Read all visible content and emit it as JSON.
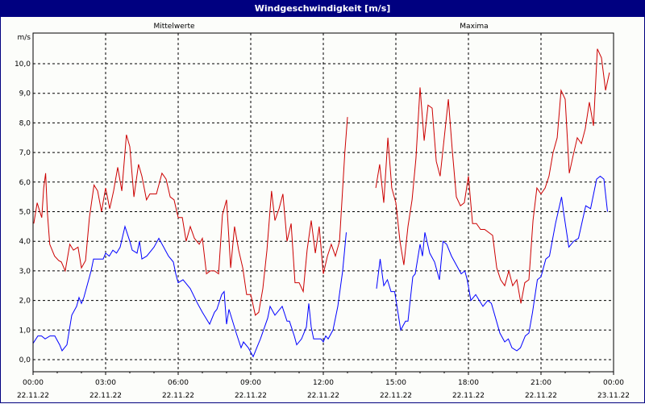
{
  "window": {
    "title": "Windgeschwindigkeit [m/s]"
  },
  "chart_data": {
    "type": "line",
    "title": "Windgeschwindigkeit [m/s]",
    "ylabel": "m/s",
    "xlabel": "",
    "ylim": [
      -0.5,
      11.0
    ],
    "xlim_hours": [
      0,
      24
    ],
    "grid": true,
    "legend_placement": "top",
    "yticks": [
      0,
      1,
      2,
      3,
      4,
      5,
      6,
      7,
      8,
      9,
      10
    ],
    "ytick_labels": [
      "0,0",
      "1,0",
      "2,0",
      "3,0",
      "4,0",
      "5,0",
      "6,0",
      "7,0",
      "8,0",
      "9,0",
      "10,0"
    ],
    "xticks": [
      {
        "time": "00:00",
        "date": "22.11.22"
      },
      {
        "time": "03:00",
        "date": "22.11.22"
      },
      {
        "time": "06:00",
        "date": "22.11.22"
      },
      {
        "time": "09:00",
        "date": "22.11.22"
      },
      {
        "time": "12:00",
        "date": "22.11.22"
      },
      {
        "time": "15:00",
        "date": "22.11.22"
      },
      {
        "time": "18:00",
        "date": "22.11.22"
      },
      {
        "time": "21:00",
        "date": "22.11.22"
      },
      {
        "time": "00:00",
        "date": "23.11.22"
      }
    ],
    "series": [
      {
        "name": "Mittelwerte",
        "color": "#0000ff",
        "segments": [
          [
            [
              0,
              0.55
            ],
            [
              0.2,
              0.8
            ],
            [
              0.35,
              0.8
            ],
            [
              0.5,
              0.7
            ],
            [
              0.7,
              0.8
            ],
            [
              0.9,
              0.8
            ],
            [
              1.1,
              0.5
            ],
            [
              1.2,
              0.3
            ],
            [
              1.4,
              0.5
            ],
            [
              1.6,
              1.5
            ],
            [
              1.8,
              1.8
            ],
            [
              1.9,
              2.1
            ],
            [
              2.0,
              1.9
            ],
            [
              2.1,
              2.1
            ],
            [
              2.4,
              3.0
            ],
            [
              2.5,
              3.4
            ],
            [
              2.9,
              3.4
            ],
            [
              3.0,
              3.6
            ],
            [
              3.15,
              3.5
            ],
            [
              3.3,
              3.7
            ],
            [
              3.45,
              3.6
            ],
            [
              3.6,
              3.8
            ],
            [
              3.8,
              4.5
            ],
            [
              4.0,
              4.0
            ],
            [
              4.1,
              3.7
            ],
            [
              4.3,
              3.6
            ],
            [
              4.4,
              4.0
            ],
            [
              4.5,
              3.4
            ],
            [
              4.7,
              3.5
            ],
            [
              4.9,
              3.7
            ],
            [
              5.0,
              3.8
            ],
            [
              5.2,
              4.1
            ],
            [
              5.4,
              3.8
            ],
            [
              5.6,
              3.5
            ],
            [
              5.8,
              3.3
            ],
            [
              5.9,
              2.9
            ],
            [
              6.0,
              2.6
            ],
            [
              6.2,
              2.7
            ],
            [
              6.3,
              2.6
            ],
            [
              6.5,
              2.4
            ],
            [
              6.8,
              1.9
            ],
            [
              7.0,
              1.6
            ],
            [
              7.3,
              1.2
            ],
            [
              7.5,
              1.6
            ],
            [
              7.6,
              1.7
            ],
            [
              7.8,
              2.2
            ],
            [
              7.9,
              2.3
            ],
            [
              8.0,
              1.2
            ],
            [
              8.1,
              1.7
            ],
            [
              8.4,
              0.9
            ],
            [
              8.6,
              0.4
            ],
            [
              8.7,
              0.6
            ],
            [
              8.9,
              0.4
            ],
            [
              9.1,
              0.1
            ],
            [
              9.3,
              0.5
            ],
            [
              9.4,
              0.7
            ],
            [
              9.7,
              1.4
            ],
            [
              9.8,
              1.8
            ],
            [
              10.0,
              1.5
            ],
            [
              10.2,
              1.7
            ],
            [
              10.3,
              1.8
            ],
            [
              10.5,
              1.3
            ],
            [
              10.6,
              1.3
            ],
            [
              10.8,
              0.8
            ],
            [
              10.9,
              0.5
            ],
            [
              11.1,
              0.7
            ],
            [
              11.3,
              1.1
            ],
            [
              11.4,
              1.9
            ],
            [
              11.5,
              1.1
            ],
            [
              11.6,
              0.7
            ],
            [
              11.9,
              0.7
            ],
            [
              12.0,
              0.6
            ],
            [
              12.1,
              0.8
            ],
            [
              12.2,
              0.7
            ],
            [
              12.4,
              1.0
            ],
            [
              12.6,
              1.8
            ],
            [
              12.8,
              3.0
            ],
            [
              12.95,
              4.3
            ]
          ],
          [
            [
              14.2,
              2.4
            ],
            [
              14.35,
              3.4
            ],
            [
              14.5,
              2.5
            ],
            [
              14.65,
              2.7
            ],
            [
              14.8,
              2.3
            ],
            [
              14.95,
              2.3
            ],
            [
              15.2,
              1.0
            ],
            [
              15.4,
              1.3
            ],
            [
              15.5,
              1.3
            ],
            [
              15.7,
              2.8
            ],
            [
              15.8,
              2.9
            ],
            [
              16.0,
              3.9
            ],
            [
              16.1,
              3.5
            ],
            [
              16.2,
              4.3
            ],
            [
              16.4,
              3.6
            ],
            [
              16.6,
              3.3
            ],
            [
              16.8,
              2.7
            ],
            [
              16.95,
              4.0
            ],
            [
              17.1,
              3.9
            ],
            [
              17.3,
              3.5
            ],
            [
              17.5,
              3.2
            ],
            [
              17.7,
              2.9
            ],
            [
              17.85,
              3.0
            ],
            [
              17.95,
              2.7
            ],
            [
              18.1,
              2.0
            ],
            [
              18.3,
              2.2
            ],
            [
              18.45,
              2.0
            ],
            [
              18.6,
              1.8
            ],
            [
              18.8,
              2.0
            ],
            [
              18.95,
              1.9
            ],
            [
              19.3,
              0.9
            ],
            [
              19.5,
              0.6
            ],
            [
              19.65,
              0.7
            ],
            [
              19.8,
              0.4
            ],
            [
              20.0,
              0.3
            ],
            [
              20.15,
              0.4
            ],
            [
              20.35,
              0.8
            ],
            [
              20.5,
              0.9
            ],
            [
              20.65,
              1.6
            ],
            [
              20.85,
              2.7
            ],
            [
              21.0,
              2.8
            ],
            [
              21.2,
              3.4
            ],
            [
              21.35,
              3.5
            ],
            [
              21.6,
              4.6
            ],
            [
              21.85,
              5.5
            ],
            [
              21.95,
              4.9
            ],
            [
              22.15,
              3.8
            ],
            [
              22.35,
              4.0
            ],
            [
              22.55,
              4.1
            ],
            [
              22.85,
              5.2
            ],
            [
              23.05,
              5.1
            ],
            [
              23.3,
              6.1
            ],
            [
              23.45,
              6.2
            ],
            [
              23.6,
              6.1
            ],
            [
              23.75,
              5.0
            ]
          ]
        ]
      },
      {
        "name": "Maxima",
        "color": "#cc0000",
        "segments": [
          [
            [
              0.03,
              4.6
            ],
            [
              0.17,
              5.3
            ],
            [
              0.28,
              5.0
            ],
            [
              0.36,
              4.8
            ],
            [
              0.44,
              5.8
            ],
            [
              0.52,
              6.3
            ],
            [
              0.59,
              5.0
            ],
            [
              0.69,
              3.9
            ],
            [
              0.89,
              3.5
            ],
            [
              1.06,
              3.35
            ],
            [
              1.17,
              3.3
            ],
            [
              1.33,
              3.0
            ],
            [
              1.52,
              3.9
            ],
            [
              1.67,
              3.7
            ],
            [
              1.86,
              3.8
            ],
            [
              2.0,
              3.1
            ],
            [
              2.17,
              3.35
            ],
            [
              2.33,
              4.8
            ],
            [
              2.52,
              5.9
            ],
            [
              2.67,
              5.7
            ],
            [
              2.83,
              5.0
            ],
            [
              3.0,
              5.8
            ],
            [
              3.17,
              5.1
            ],
            [
              3.33,
              5.7
            ],
            [
              3.5,
              6.5
            ],
            [
              3.67,
              5.7
            ],
            [
              3.86,
              7.6
            ],
            [
              4.0,
              7.2
            ],
            [
              4.17,
              5.5
            ],
            [
              4.36,
              6.6
            ],
            [
              4.5,
              6.2
            ],
            [
              4.69,
              5.4
            ],
            [
              4.83,
              5.6
            ],
            [
              5.1,
              5.6
            ],
            [
              5.33,
              6.3
            ],
            [
              5.5,
              6.1
            ],
            [
              5.67,
              5.5
            ],
            [
              5.83,
              5.4
            ],
            [
              6.0,
              4.8
            ],
            [
              6.17,
              4.8
            ],
            [
              6.33,
              4.0
            ],
            [
              6.5,
              4.5
            ],
            [
              6.67,
              4.1
            ],
            [
              6.87,
              3.9
            ],
            [
              7.0,
              4.1
            ],
            [
              7.17,
              2.9
            ],
            [
              7.33,
              3.0
            ],
            [
              7.5,
              3.0
            ],
            [
              7.67,
              2.9
            ],
            [
              7.83,
              4.9
            ],
            [
              8.0,
              5.4
            ],
            [
              8.17,
              3.1
            ],
            [
              8.33,
              4.5
            ],
            [
              8.5,
              3.7
            ],
            [
              8.67,
              3.1
            ],
            [
              8.83,
              2.2
            ],
            [
              9.0,
              2.2
            ],
            [
              9.19,
              1.5
            ],
            [
              9.33,
              1.6
            ],
            [
              9.5,
              2.4
            ],
            [
              9.67,
              3.7
            ],
            [
              9.86,
              5.7
            ],
            [
              10.0,
              4.7
            ],
            [
              10.17,
              5.1
            ],
            [
              10.33,
              5.6
            ],
            [
              10.5,
              4.0
            ],
            [
              10.67,
              4.6
            ],
            [
              10.83,
              2.6
            ],
            [
              11.0,
              2.6
            ],
            [
              11.17,
              2.3
            ],
            [
              11.33,
              3.7
            ],
            [
              11.5,
              4.7
            ],
            [
              11.67,
              3.6
            ],
            [
              11.83,
              4.5
            ],
            [
              12.0,
              2.9
            ],
            [
              12.17,
              3.5
            ],
            [
              12.33,
              3.9
            ],
            [
              12.5,
              3.5
            ],
            [
              12.67,
              4.0
            ],
            [
              12.89,
              7.0
            ],
            [
              13.0,
              8.2
            ]
          ],
          [
            [
              14.17,
              5.8
            ],
            [
              14.33,
              6.6
            ],
            [
              14.5,
              5.3
            ],
            [
              14.67,
              7.5
            ],
            [
              14.83,
              5.8
            ],
            [
              15.0,
              5.3
            ],
            [
              15.17,
              4.0
            ],
            [
              15.33,
              3.2
            ],
            [
              15.5,
              4.5
            ],
            [
              15.67,
              5.4
            ],
            [
              15.83,
              6.8
            ],
            [
              16.0,
              9.2
            ],
            [
              16.17,
              7.4
            ],
            [
              16.33,
              8.6
            ],
            [
              16.5,
              8.5
            ],
            [
              16.67,
              6.7
            ],
            [
              16.83,
              6.2
            ],
            [
              17.17,
              8.8
            ],
            [
              17.33,
              7.1
            ],
            [
              17.5,
              5.5
            ],
            [
              17.67,
              5.2
            ],
            [
              17.83,
              5.3
            ],
            [
              18.0,
              6.2
            ],
            [
              18.17,
              4.6
            ],
            [
              18.33,
              4.6
            ],
            [
              18.5,
              4.4
            ],
            [
              18.67,
              4.4
            ],
            [
              19.0,
              4.2
            ],
            [
              19.17,
              3.1
            ],
            [
              19.33,
              2.7
            ],
            [
              19.5,
              2.5
            ],
            [
              19.67,
              3.0
            ],
            [
              19.83,
              2.5
            ],
            [
              20.0,
              2.7
            ],
            [
              20.17,
              1.9
            ],
            [
              20.33,
              2.6
            ],
            [
              20.5,
              2.7
            ],
            [
              20.67,
              4.7
            ],
            [
              20.83,
              5.8
            ],
            [
              21.0,
              5.6
            ],
            [
              21.17,
              5.8
            ],
            [
              21.33,
              6.2
            ],
            [
              21.5,
              7.0
            ],
            [
              21.67,
              7.5
            ],
            [
              21.83,
              9.1
            ],
            [
              22.0,
              8.8
            ],
            [
              22.17,
              6.3
            ],
            [
              22.33,
              6.9
            ],
            [
              22.5,
              7.5
            ],
            [
              22.67,
              7.3
            ],
            [
              22.83,
              7.8
            ],
            [
              23.0,
              8.7
            ],
            [
              23.17,
              7.9
            ],
            [
              23.33,
              10.5
            ],
            [
              23.5,
              10.2
            ],
            [
              23.67,
              9.1
            ],
            [
              23.83,
              9.7
            ]
          ]
        ]
      }
    ]
  }
}
